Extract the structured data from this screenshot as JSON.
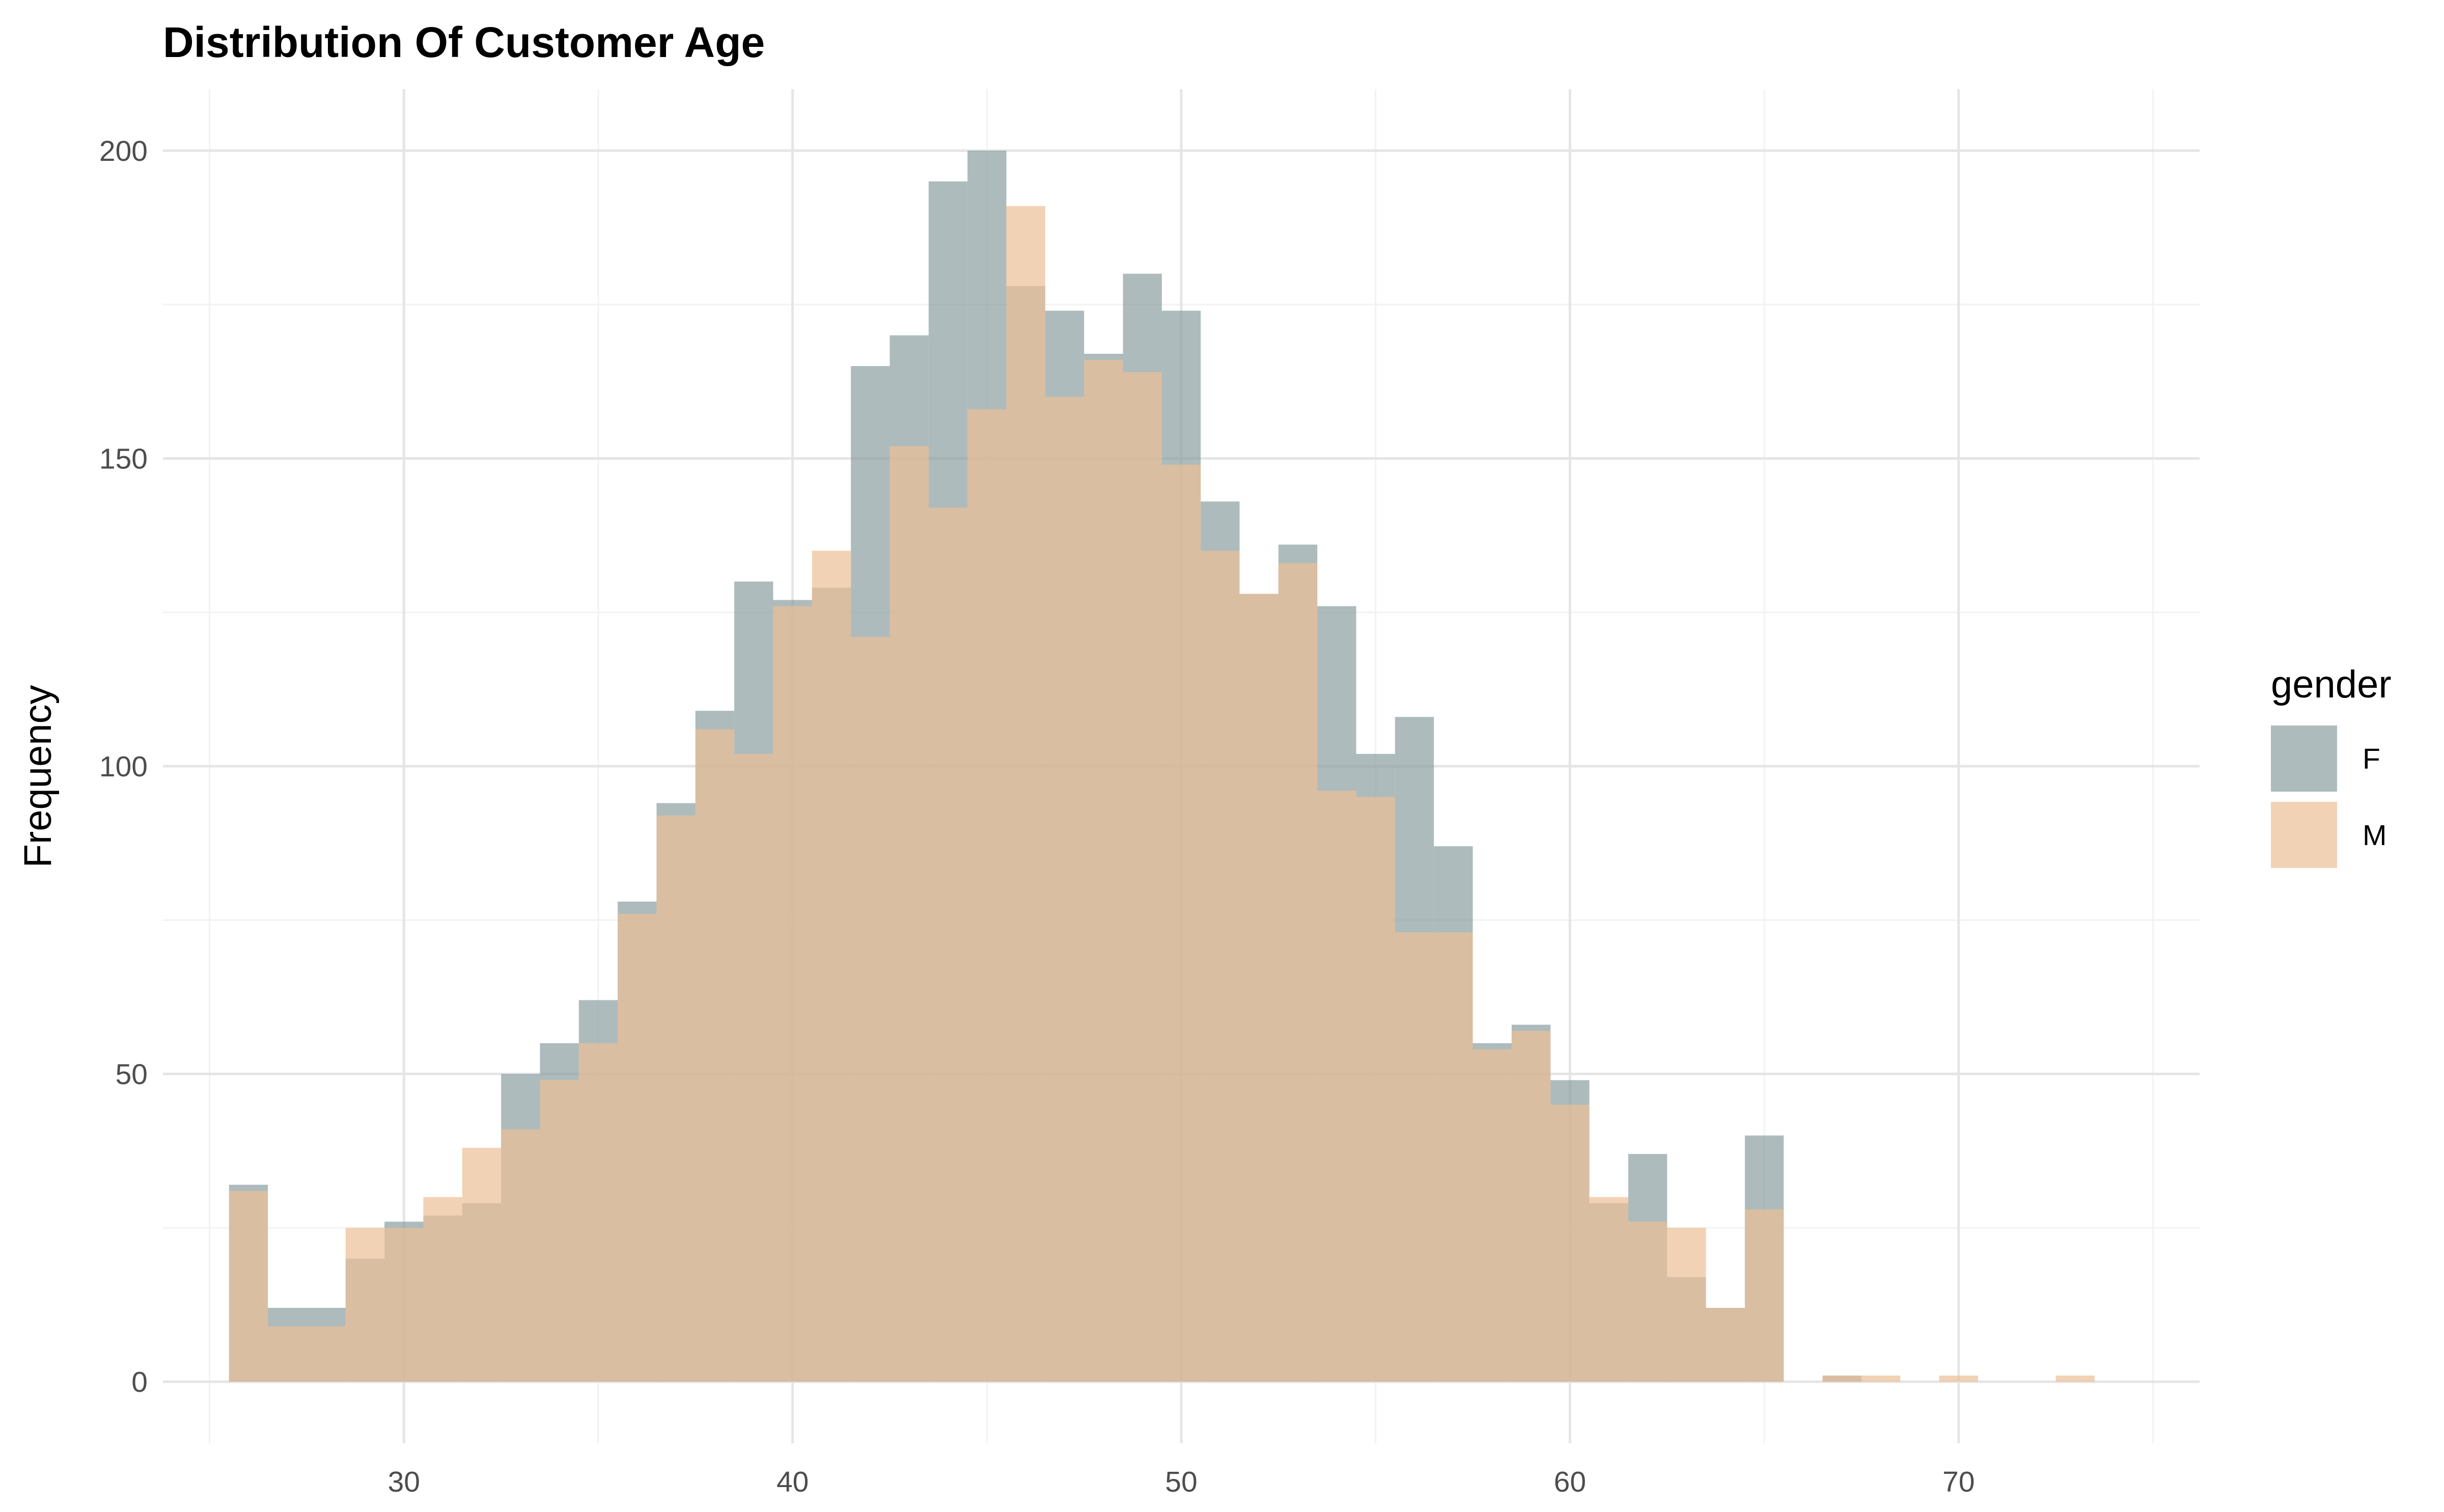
{
  "chart_data": {
    "type": "bar",
    "subtype": "overlapping-histogram",
    "title": "Distribution Of Customer Age",
    "xlabel": "",
    "ylabel": "Frequency",
    "xlim": [
      23.8,
      76.2
    ],
    "ylim": [
      -10,
      210
    ],
    "x_ticks": [
      30,
      40,
      50,
      60,
      70
    ],
    "y_ticks": [
      0,
      50,
      100,
      150,
      200
    ],
    "grid": true,
    "bin_start": 25.5,
    "bin_width": 1,
    "legend": {
      "title": "gender",
      "placement": "right",
      "entries": [
        "F",
        "M"
      ]
    },
    "series": [
      {
        "name": "F",
        "color": "#8a9ea1",
        "opacity": 0.7,
        "values": [
          32,
          12,
          12,
          20,
          26,
          27,
          29,
          50,
          55,
          62,
          78,
          94,
          109,
          130,
          127,
          129,
          165,
          170,
          195,
          200,
          178,
          174,
          167,
          180,
          174,
          143,
          128,
          136,
          126,
          102,
          108,
          87,
          55,
          58,
          49,
          29,
          37,
          17,
          12,
          40,
          0,
          1,
          0,
          0,
          0,
          0,
          0,
          0
        ]
      },
      {
        "name": "M",
        "color": "#ecbf96",
        "opacity": 0.7,
        "values": [
          31,
          9,
          9,
          25,
          25,
          30,
          38,
          41,
          49,
          55,
          76,
          92,
          106,
          102,
          126,
          135,
          121,
          152,
          142,
          158,
          191,
          160,
          166,
          164,
          149,
          135,
          128,
          133,
          96,
          95,
          73,
          73,
          54,
          57,
          45,
          30,
          26,
          25,
          12,
          28,
          0,
          1,
          1,
          0,
          1,
          0,
          0,
          1
        ]
      }
    ]
  }
}
